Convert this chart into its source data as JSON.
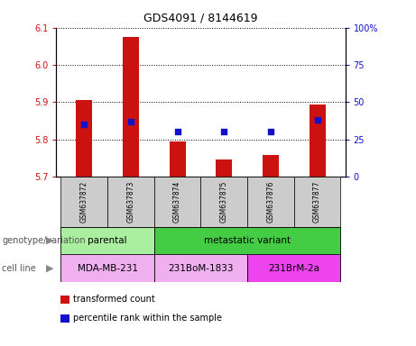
{
  "title": "GDS4091 / 8144619",
  "samples": [
    "GSM637872",
    "GSM637873",
    "GSM637874",
    "GSM637875",
    "GSM637876",
    "GSM637877"
  ],
  "transformed_counts": [
    5.905,
    6.075,
    5.795,
    5.745,
    5.758,
    5.893
  ],
  "percentile_ranks": [
    35,
    37,
    30,
    30,
    30,
    38
  ],
  "ylim_left": [
    5.7,
    6.1
  ],
  "ylim_right": [
    0,
    100
  ],
  "yticks_left": [
    5.7,
    5.8,
    5.9,
    6.0,
    6.1
  ],
  "yticks_right": [
    0,
    25,
    50,
    75,
    100
  ],
  "ytick_labels_right": [
    "0",
    "25",
    "50",
    "75",
    "100%"
  ],
  "bar_color": "#cc1111",
  "dot_color": "#1111cc",
  "bar_bottom": 5.7,
  "genotype_groups": [
    {
      "label": "parental",
      "samples": [
        0,
        1
      ],
      "color": "#aaeea0"
    },
    {
      "label": "metastatic variant",
      "samples": [
        2,
        3,
        4,
        5
      ],
      "color": "#44cc44"
    }
  ],
  "cell_line_groups": [
    {
      "label": "MDA-MB-231",
      "samples": [
        0,
        1
      ],
      "color": "#f0b0f0"
    },
    {
      "label": "231BoM-1833",
      "samples": [
        2,
        3
      ],
      "color": "#f0b0f0"
    },
    {
      "label": "231BrM-2a",
      "samples": [
        4,
        5
      ],
      "color": "#ee44ee"
    }
  ],
  "legend_items": [
    {
      "color": "#cc1111",
      "label": "transformed count"
    },
    {
      "color": "#1111cc",
      "label": "percentile rank within the sample"
    }
  ],
  "label_genotype": "genotype/variation",
  "label_cellline": "cell line",
  "tick_color_left": "#cc1111",
  "tick_color_right": "#1111cc",
  "sample_bg_color": "#cccccc",
  "bar_width": 0.35
}
